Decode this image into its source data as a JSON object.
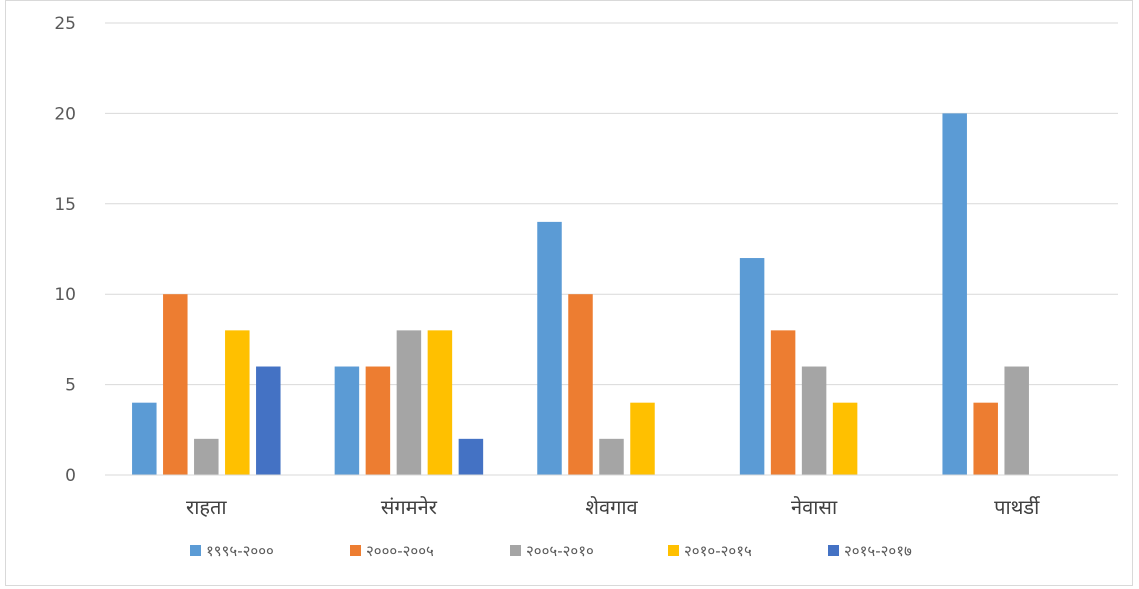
{
  "chart_data": {
    "type": "bar",
    "categories": [
      "राहता",
      "संगमनेर",
      "शेवगाव",
      "नेवासा",
      "पाथर्डी"
    ],
    "series": [
      {
        "name": "१९९५-२०००",
        "color": "#5b9bd5",
        "values": [
          4,
          6,
          14,
          12,
          20
        ]
      },
      {
        "name": "२०००-२००५",
        "color": "#ed7d31",
        "values": [
          10,
          6,
          10,
          8,
          4
        ]
      },
      {
        "name": "२००५-२०१०",
        "color": "#a5a5a5",
        "values": [
          2,
          8,
          2,
          6,
          6
        ]
      },
      {
        "name": "२०१०-२०१५",
        "color": "#ffc000",
        "values": [
          8,
          8,
          4,
          4,
          0
        ]
      },
      {
        "name": "२०१५-२०१७",
        "color": "#4472c4",
        "values": [
          6,
          2,
          0,
          0,
          0
        ]
      }
    ],
    "y_ticks": [
      "0",
      "5",
      "10",
      "15",
      "20",
      "25"
    ],
    "ylim": [
      0,
      25
    ],
    "grid": true,
    "legend_position": "bottom"
  }
}
